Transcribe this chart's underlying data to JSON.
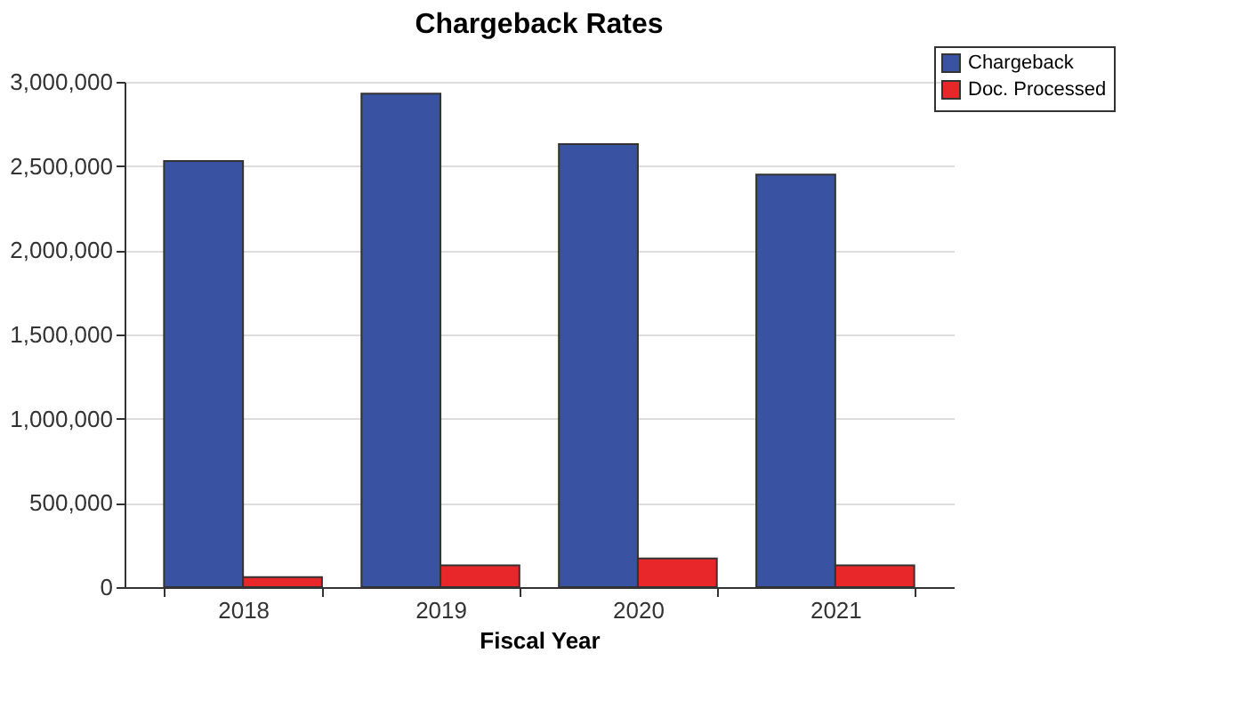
{
  "chart_data": {
    "type": "bar",
    "title": "Chargeback Rates",
    "xlabel": "Fiscal Year",
    "categories": [
      "2018",
      "2019",
      "2020",
      "2021"
    ],
    "series": [
      {
        "name": "Chargeback",
        "color": "#3a52a2",
        "values": [
          2530000,
          2930000,
          2630000,
          2450000
        ]
      },
      {
        "name": "Doc. Processed",
        "color": "#e8272a",
        "values": [
          60000,
          130000,
          170000,
          130000
        ]
      }
    ],
    "ylim": [
      0,
      3000000
    ],
    "yticks": [
      {
        "value": 0,
        "label": "0"
      },
      {
        "value": 500000,
        "label": "500,000"
      },
      {
        "value": 1000000,
        "label": "1,000,000"
      },
      {
        "value": 1500000,
        "label": "1,500,000"
      },
      {
        "value": 2000000,
        "label": "2,000,000"
      },
      {
        "value": 2500000,
        "label": "2,500,000"
      },
      {
        "value": 3000000,
        "label": "3,000,000"
      }
    ],
    "grid": "y",
    "legend": "top right"
  }
}
